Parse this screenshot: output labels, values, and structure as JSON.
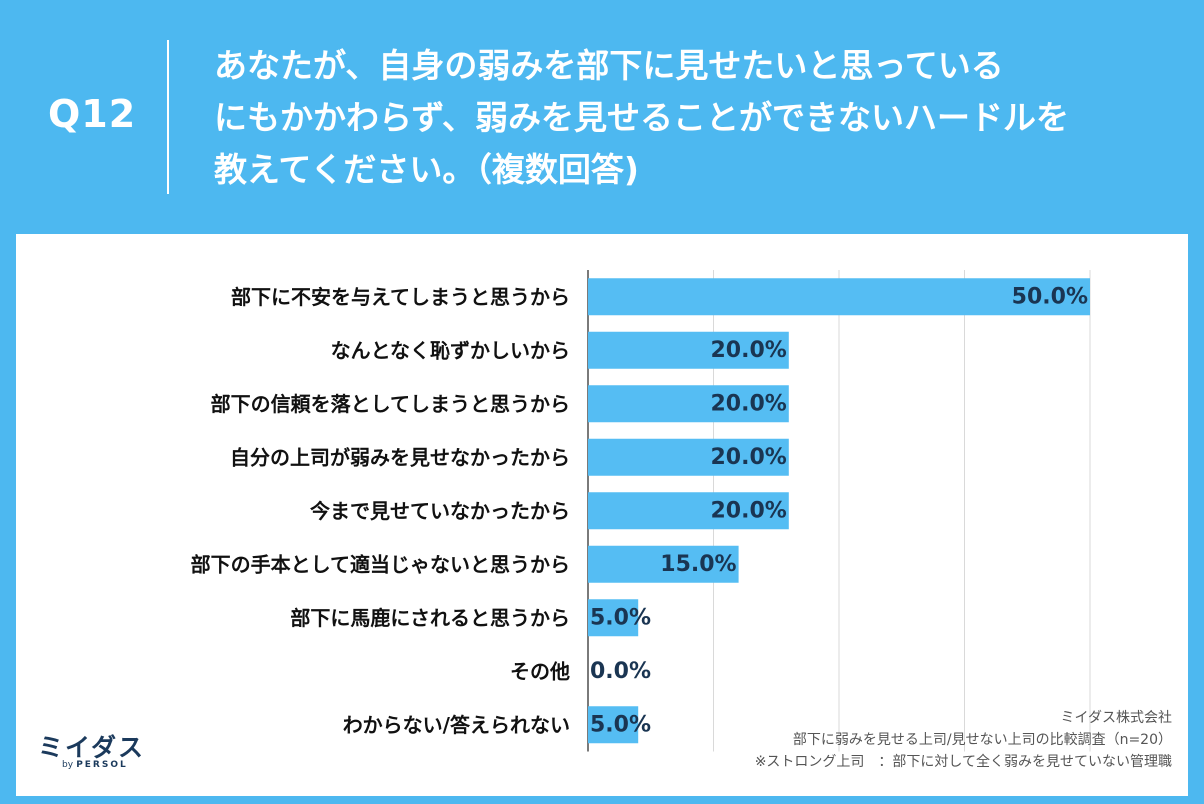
{
  "header": {
    "q_label": "Q12",
    "question_lines": [
      "あなたが、自身の弱みを部下に見せたいと思っている",
      "にもかかわらず、弱みを見せることができないハードルを",
      "教えてください。（複数回答)"
    ]
  },
  "chart_data": {
    "type": "bar",
    "orientation": "horizontal",
    "categories": [
      "部下に不安を与えてしまうと思うから",
      "なんとなく恥ずかしいから",
      "部下の信頼を落としてしまうと思うから",
      "自分の上司が弱みを見せなかったから",
      "今まで見せていなかったから",
      "部下の手本として適当じゃないと思うから",
      "部下に馬鹿にされると思うから",
      "その他",
      "わからない/答えられない"
    ],
    "values": [
      50.0,
      20.0,
      20.0,
      20.0,
      20.0,
      15.0,
      5.0,
      0.0,
      5.0
    ],
    "value_labels": [
      "50.0%",
      "20.0%",
      "20.0%",
      "20.0%",
      "20.0%",
      "15.0%",
      "5.0%",
      "0.0%",
      "5.0%"
    ],
    "xlim": [
      0,
      50
    ],
    "grid": true,
    "bar_color": "#55bdf3"
  },
  "logo": {
    "main": "ミイダス",
    "by": "by",
    "brand": "PERSOL"
  },
  "source": {
    "company": "ミイダス株式会社",
    "survey": "部下に弱みを見せる上司/見せない上司の比較調査（n=20）",
    "note": "※ストロング上司　：部下に対して全く弱みを見せていない管理職"
  },
  "colors": {
    "background": "#4db8f0",
    "panel": "#ffffff",
    "bar": "#55bdf3",
    "value_text": "#1a3552",
    "logo": "#1b3a5c"
  }
}
